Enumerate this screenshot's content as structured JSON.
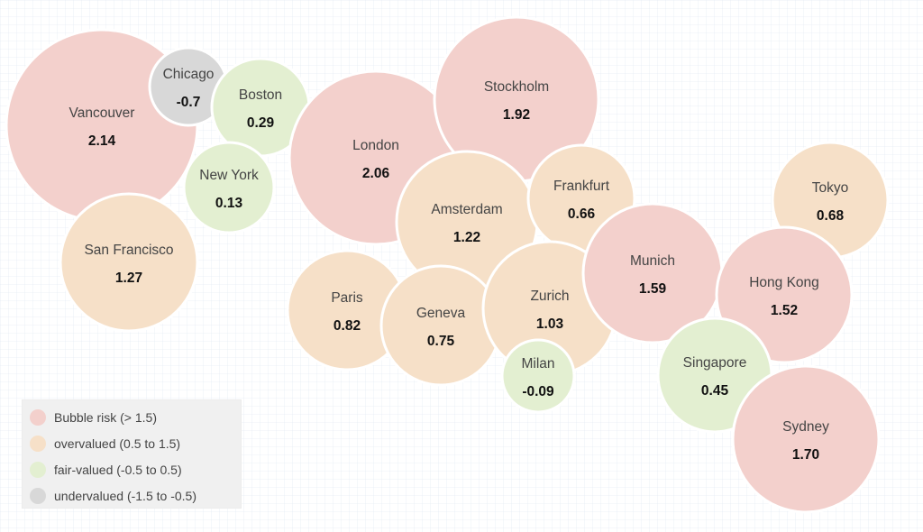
{
  "chart_data": {
    "type": "bubble",
    "title": "",
    "colors": {
      "bubble_risk": "#f3d0cc",
      "overvalued": "#f6e0c8",
      "fair_valued": "#e3efd1",
      "undervalued": "#d8d8d8"
    },
    "legend": {
      "placement": "bottom-left",
      "items": [
        {
          "label": "Bubble risk (> 1.5)",
          "category": "bubble_risk"
        },
        {
          "label": "overvalued (0.5 to 1.5)",
          "category": "overvalued"
        },
        {
          "label": "fair-valued (-0.5 to 0.5)",
          "category": "fair_valued"
        },
        {
          "label": "undervalued (-1.5 to -0.5)",
          "category": "undervalued"
        }
      ]
    },
    "bubbles": [
      {
        "city": "Vancouver",
        "value": "2.14",
        "category": "bubble_risk"
      },
      {
        "city": "Chicago",
        "value": "-0.7",
        "category": "undervalued"
      },
      {
        "city": "Boston",
        "value": "0.29",
        "category": "fair_valued"
      },
      {
        "city": "New York",
        "value": "0.13",
        "category": "fair_valued"
      },
      {
        "city": "San Francisco",
        "value": "1.27",
        "category": "overvalued"
      },
      {
        "city": "London",
        "value": "2.06",
        "category": "bubble_risk"
      },
      {
        "city": "Stockholm",
        "value": "1.92",
        "category": "bubble_risk"
      },
      {
        "city": "Amsterdam",
        "value": "1.22",
        "category": "overvalued"
      },
      {
        "city": "Frankfurt",
        "value": "0.66",
        "category": "overvalued"
      },
      {
        "city": "Paris",
        "value": "0.82",
        "category": "overvalued"
      },
      {
        "city": "Geneva",
        "value": "0.75",
        "category": "overvalued"
      },
      {
        "city": "Zurich",
        "value": "1.03",
        "category": "overvalued"
      },
      {
        "city": "Milan",
        "value": "-0.09",
        "category": "fair_valued"
      },
      {
        "city": "Munich",
        "value": "1.59",
        "category": "bubble_risk"
      },
      {
        "city": "Tokyo",
        "value": "0.68",
        "category": "overvalued"
      },
      {
        "city": "Hong Kong",
        "value": "1.52",
        "category": "bubble_risk"
      },
      {
        "city": "Singapore",
        "value": "0.45",
        "category": "fair_valued"
      },
      {
        "city": "Sydney",
        "value": "1.70",
        "category": "bubble_risk"
      }
    ]
  }
}
